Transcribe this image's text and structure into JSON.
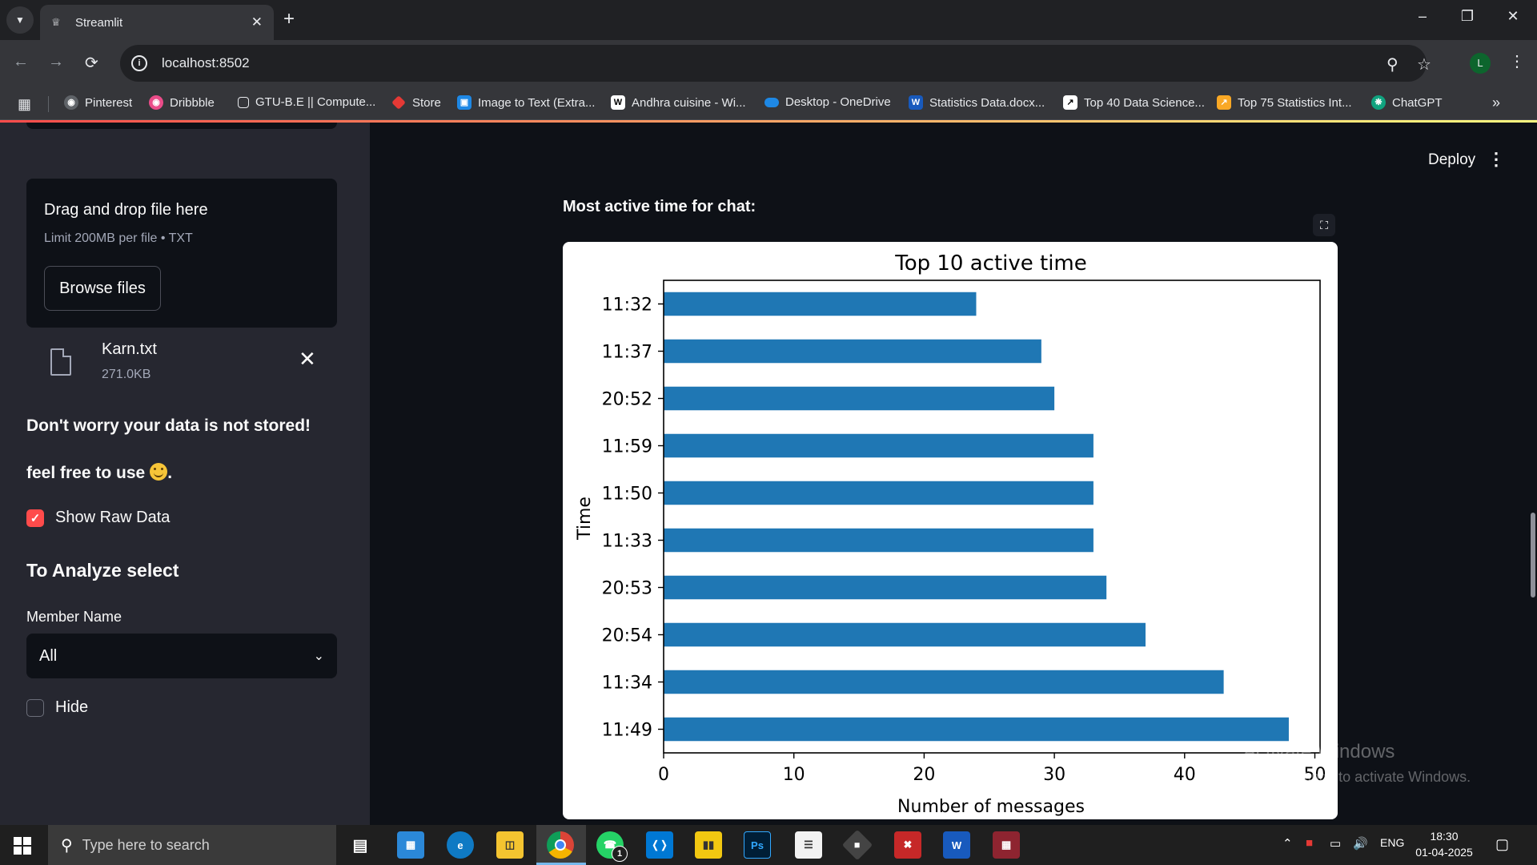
{
  "browser": {
    "tab_title": "Streamlit",
    "url": "localhost:8502",
    "profile_initial": "L",
    "bookmarks": [
      {
        "label": "Pinterest",
        "icon": "globe-icon",
        "color": "#5f6368"
      },
      {
        "label": "Dribbble",
        "icon": "dribbble-icon",
        "color": "#ea4c89"
      },
      {
        "label": "GTU-B.E || Compute...",
        "icon": "page-icon",
        "color": "#5f6368"
      },
      {
        "label": "Store",
        "icon": "store-icon",
        "color": "#e53935"
      },
      {
        "label": "Image to Text (Extra...",
        "icon": "image-icon",
        "color": "#1e88e5"
      },
      {
        "label": "Andhra cuisine - Wi...",
        "icon": "wikipedia-icon",
        "color": "#ffffff"
      },
      {
        "label": "Desktop - OneDrive",
        "icon": "onedrive-icon",
        "color": "#1e88e5"
      },
      {
        "label": "Statistics Data.docx...",
        "icon": "word-icon",
        "color": "#185abd"
      },
      {
        "label": "Top 40 Data Science...",
        "icon": "chart-icon",
        "color": "#ffffff"
      },
      {
        "label": "Top 75 Statistics Int...",
        "icon": "analytics-icon",
        "color": "#f9a825"
      },
      {
        "label": "ChatGPT",
        "icon": "openai-icon",
        "color": "#10a37f"
      }
    ]
  },
  "sidebar": {
    "uploader": {
      "title": "Drag and drop file here",
      "limit": "Limit 200MB per file • TXT",
      "browse_label": "Browse files"
    },
    "file": {
      "name": "Karn.txt",
      "size": "271.0KB"
    },
    "note1": "Don't worry your data is not stored!",
    "note2": "feel free to use",
    "note2_end": ".",
    "show_raw": {
      "label": "Show Raw Data",
      "checked": true
    },
    "analyze_heading": "To Analyze select",
    "member_label": "Member Name",
    "member_value": "All",
    "hide": {
      "label": "Hide",
      "checked": false
    }
  },
  "main": {
    "deploy_label": "Deploy",
    "section_heading": "Most active time for chat:"
  },
  "chart_data": {
    "type": "bar",
    "orientation": "horizontal",
    "title": "Top 10 active time",
    "xlabel": "Number of messages",
    "ylabel": "Time",
    "categories": [
      "11:32",
      "11:37",
      "20:52",
      "11:59",
      "11:50",
      "11:33",
      "20:53",
      "20:54",
      "11:34",
      "11:49"
    ],
    "values": [
      24,
      29,
      30,
      33,
      33,
      33,
      34,
      37,
      43,
      48
    ],
    "xlim": [
      0,
      50.4
    ],
    "xticks": [
      0,
      10,
      20,
      30,
      40,
      50
    ],
    "bar_color": "#1f77b4",
    "grid": false
  },
  "watermark": {
    "line1": "Activate Windows",
    "line2": "Go to Settings to activate Windows."
  },
  "taskbar": {
    "search_placeholder": "Type here to search",
    "language": "ENG",
    "time": "18:30",
    "date": "01-04-2025",
    "whatsapp_badge": "1"
  }
}
